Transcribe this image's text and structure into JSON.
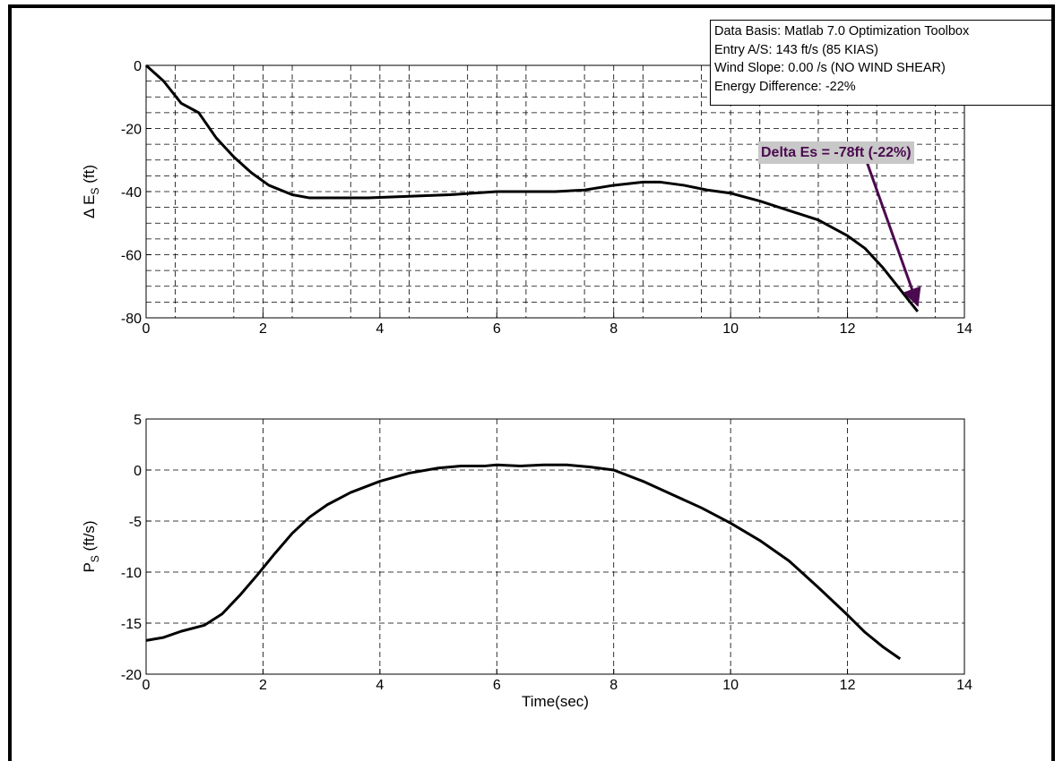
{
  "info_box": {
    "lines": [
      "Data Basis: Matlab 7.0 Optimization Toolbox",
      "Entry A/S: 143 ft/s (85 KIAS)",
      "Wind Slope: 0.00 /s (NO WIND SHEAR)",
      "Energy Difference:  -22%"
    ]
  },
  "colors": {
    "line": "#000000",
    "annotation_text": "#4b0a4f",
    "annotation_bg": "#c8c8c8",
    "arrow": "#4b0a4f"
  },
  "chart_data": [
    {
      "type": "line",
      "title": "",
      "xlabel": "",
      "ylabel": "Δ E",
      "ylabel_sub": "S",
      "ylabel_unit": " (ft)",
      "xlim": [
        0,
        14
      ],
      "ylim": [
        -80,
        0
      ],
      "xticks": [
        0,
        2,
        4,
        6,
        8,
        10,
        12,
        14
      ],
      "yticks": [
        0,
        -20,
        -40,
        -60,
        -80
      ],
      "grid": true,
      "minor_grid_y_step": 5,
      "annotation": {
        "text": "Delta Es = -78ft (-22%)",
        "arrow_from": [
          12.3,
          -29
        ],
        "arrow_to": [
          13.2,
          -76
        ]
      },
      "series": [
        {
          "x": [
            0,
            0.3,
            0.6,
            0.9,
            1.2,
            1.5,
            1.8,
            2.1,
            2.5,
            2.8,
            3.2,
            3.8,
            4.5,
            5.2,
            6.0,
            6.5,
            7.0,
            7.5,
            8.0,
            8.5,
            8.8,
            9.2,
            9.6,
            10.0,
            10.5,
            11.0,
            11.5,
            12.0,
            12.3,
            12.6,
            12.9,
            13.2
          ],
          "y": [
            0,
            -5,
            -12,
            -15,
            -23,
            -29,
            -34,
            -38,
            -41,
            -42,
            -42,
            -42,
            -41.5,
            -41,
            -40,
            -40,
            -40,
            -39.5,
            -38,
            -37,
            -37,
            -38,
            -39.5,
            -40.5,
            -43,
            -46,
            -49,
            -54,
            -58,
            -64,
            -71,
            -78
          ]
        }
      ]
    },
    {
      "type": "line",
      "title": "",
      "xlabel": "Time(sec)",
      "ylabel": "P",
      "ylabel_sub": "S",
      "ylabel_unit": " (ft/s)",
      "xlim": [
        0,
        14
      ],
      "ylim": [
        -20,
        5
      ],
      "xticks": [
        0,
        2,
        4,
        6,
        8,
        10,
        12,
        14
      ],
      "yticks": [
        5,
        0,
        -5,
        -10,
        -15,
        -20
      ],
      "grid": true,
      "minor_grid_y_step": 0,
      "series": [
        {
          "x": [
            0,
            0.3,
            0.6,
            1.0,
            1.3,
            1.6,
            1.9,
            2.2,
            2.5,
            2.8,
            3.1,
            3.5,
            4.0,
            4.5,
            5.0,
            5.4,
            5.8,
            6.0,
            6.4,
            6.8,
            7.2,
            7.6,
            8.0,
            8.5,
            9.0,
            9.5,
            10.0,
            10.5,
            11.0,
            11.5,
            12.0,
            12.3,
            12.6,
            12.9
          ],
          "y": [
            -16.7,
            -16.4,
            -15.8,
            -15.2,
            -14.1,
            -12.3,
            -10.3,
            -8.2,
            -6.2,
            -4.6,
            -3.4,
            -2.2,
            -1.1,
            -0.3,
            0.2,
            0.4,
            0.4,
            0.5,
            0.4,
            0.5,
            0.5,
            0.3,
            0,
            -1.1,
            -2.4,
            -3.7,
            -5.2,
            -6.9,
            -8.9,
            -11.5,
            -14.2,
            -15.9,
            -17.3,
            -18.5
          ]
        }
      ]
    }
  ]
}
